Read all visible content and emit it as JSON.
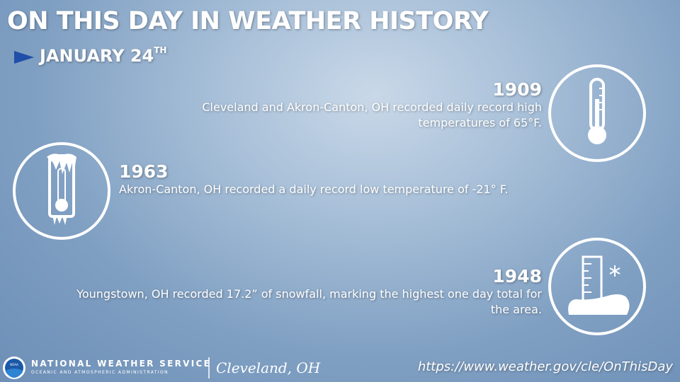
{
  "header": {
    "title": "ON THIS DAY IN WEATHER HISTORY",
    "date": "JANUARY 24",
    "date_suffix": "TH"
  },
  "events": [
    {
      "year": "1909",
      "text": "Cleveland and Akron-Canton, OH recorded daily record high temperatures of 65°F."
    },
    {
      "year": "1963",
      "text": "Akron-Canton, OH recorded a daily record low temperature of -21° F."
    },
    {
      "year": "1948",
      "text": "Youngstown, OH recorded 17.2” of snowfall, marking the highest one day total for the area."
    }
  ],
  "footer": {
    "logo": "NOAA",
    "agency": "NATIONAL WEATHER SERVICE",
    "agency_sub": "OCEANIC AND ATMOSPHERIC ADMINISTRATION",
    "office": "Cleveland, OH",
    "url": "https://www.weather.gov/cle/OnThisDay"
  }
}
